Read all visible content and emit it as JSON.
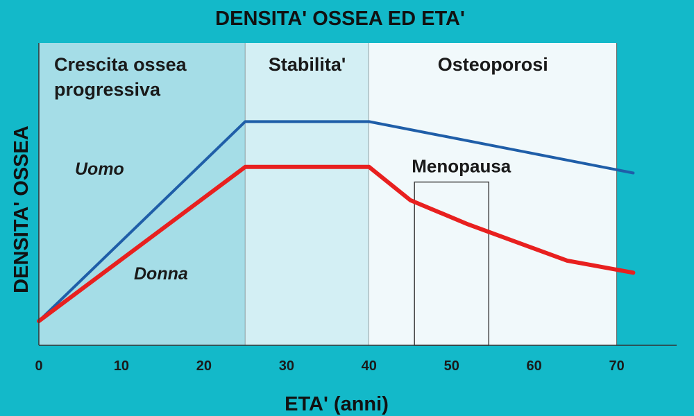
{
  "background_color": "#13b9c9",
  "chart_data": {
    "type": "line",
    "title": "DENSITA' OSSEA ED ETA'",
    "xlabel": "ETA' (anni)",
    "ylabel": "DENSITA' OSSEA",
    "xlim": [
      0,
      76
    ],
    "ylim": [
      0,
      100
    ],
    "xticks": [
      0,
      10,
      20,
      30,
      40,
      50,
      60,
      70
    ],
    "grid": false,
    "regions": [
      {
        "label_lines": [
          "Crescita ossea",
          "progressiva"
        ],
        "from": 0,
        "to": 25,
        "color": "#a5dde7"
      },
      {
        "label_lines": [
          "Stabilita'"
        ],
        "from": 25,
        "to": 40,
        "color": "#d3eff4"
      },
      {
        "label_lines": [
          "Osteoporosi"
        ],
        "from": 40,
        "to": 70,
        "color": "#f1f9fb"
      }
    ],
    "series": [
      {
        "name": "Uomo",
        "color": "#1f5ea8",
        "points": [
          [
            0,
            8
          ],
          [
            25,
            74
          ],
          [
            40,
            74
          ],
          [
            72,
            57
          ]
        ]
      },
      {
        "name": "Donna",
        "color": "#e8201f",
        "points": [
          [
            0,
            8
          ],
          [
            25,
            59
          ],
          [
            40,
            59
          ],
          [
            45,
            48
          ],
          [
            52,
            40
          ],
          [
            64,
            28
          ],
          [
            72,
            24
          ]
        ]
      }
    ],
    "annotations": [
      {
        "text": "Menopausa",
        "box_x": [
          45.5,
          54.5
        ],
        "box_y": [
          0,
          54
        ]
      }
    ]
  }
}
